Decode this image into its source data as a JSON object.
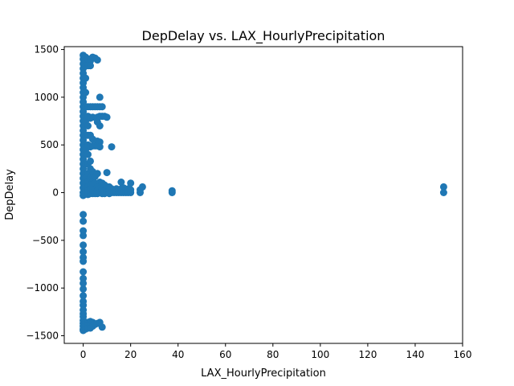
{
  "chart_data": {
    "type": "scatter",
    "title": "DepDelay vs. LAX_HourlyPrecipitation",
    "xlabel": "LAX_HourlyPrecipitation",
    "ylabel": "DepDelay",
    "xlim": [
      -8,
      160
    ],
    "ylim": [
      -1580,
      1530
    ],
    "xticks": [
      0,
      20,
      40,
      60,
      80,
      100,
      120,
      140,
      160
    ],
    "yticks": [
      -1500,
      -1000,
      -500,
      0,
      500,
      1000,
      1500
    ],
    "xtick_labels": [
      "0",
      "20",
      "40",
      "60",
      "80",
      "100",
      "120",
      "140",
      "160"
    ],
    "ytick_labels": [
      "−1500",
      "−1000",
      "−500",
      "0",
      "500",
      "1000",
      "1500"
    ],
    "grid": false,
    "marker_color": "#1f77b4",
    "series": [
      {
        "name": "DepDelay",
        "points": [
          [
            0,
            1440
          ],
          [
            0,
            1400
          ],
          [
            0,
            1350
          ],
          [
            0,
            1300
          ],
          [
            0,
            1250
          ],
          [
            0,
            1200
          ],
          [
            0,
            1150
          ],
          [
            0,
            1100
          ],
          [
            0,
            1050
          ],
          [
            0,
            1000
          ],
          [
            0,
            950
          ],
          [
            0,
            900
          ],
          [
            0,
            850
          ],
          [
            0,
            800
          ],
          [
            0,
            750
          ],
          [
            0,
            700
          ],
          [
            0,
            650
          ],
          [
            0,
            600
          ],
          [
            0,
            550
          ],
          [
            0,
            500
          ],
          [
            0,
            450
          ],
          [
            0,
            400
          ],
          [
            0,
            350
          ],
          [
            0,
            300
          ],
          [
            0,
            250
          ],
          [
            0,
            200
          ],
          [
            0,
            150
          ],
          [
            0,
            100
          ],
          [
            0,
            50
          ],
          [
            0,
            0
          ],
          [
            0,
            -30
          ],
          [
            0,
            -230
          ],
          [
            0,
            -300
          ],
          [
            0,
            -400
          ],
          [
            0,
            -450
          ],
          [
            0,
            -550
          ],
          [
            0,
            -620
          ],
          [
            0,
            -680
          ],
          [
            0,
            -720
          ],
          [
            0,
            -830
          ],
          [
            0,
            -900
          ],
          [
            0,
            -950
          ],
          [
            0,
            -1010
          ],
          [
            0,
            -1080
          ],
          [
            0,
            -1140
          ],
          [
            0,
            -1180
          ],
          [
            0,
            -1230
          ],
          [
            0,
            -1270
          ],
          [
            0,
            -1300
          ],
          [
            0,
            -1340
          ],
          [
            0,
            -1370
          ],
          [
            0,
            -1400
          ],
          [
            0,
            -1430
          ],
          [
            0,
            -1445
          ],
          [
            1,
            1420
          ],
          [
            1,
            1380
          ],
          [
            1,
            1330
          ],
          [
            1,
            1200
          ],
          [
            1,
            1050
          ],
          [
            1,
            900
          ],
          [
            1,
            750
          ],
          [
            1,
            600
          ],
          [
            1,
            450
          ],
          [
            1,
            300
          ],
          [
            1,
            150
          ],
          [
            1,
            60
          ],
          [
            1,
            20
          ],
          [
            1,
            -10
          ],
          [
            1,
            -1360
          ],
          [
            1,
            -1400
          ],
          [
            1,
            -1430
          ],
          [
            2,
            1400
          ],
          [
            2,
            1330
          ],
          [
            2,
            900
          ],
          [
            2,
            800
          ],
          [
            2,
            700
          ],
          [
            2,
            600
          ],
          [
            2,
            500
          ],
          [
            2,
            400
          ],
          [
            2,
            300
          ],
          [
            2,
            200
          ],
          [
            2,
            120
          ],
          [
            2,
            60
          ],
          [
            2,
            20
          ],
          [
            2,
            -20
          ],
          [
            2,
            -1360
          ],
          [
            2,
            -1390
          ],
          [
            2,
            -1420
          ],
          [
            3,
            1380
          ],
          [
            3,
            1330
          ],
          [
            3,
            900
          ],
          [
            3,
            780
          ],
          [
            3,
            600
          ],
          [
            3,
            480
          ],
          [
            3,
            330
          ],
          [
            3,
            250
          ],
          [
            3,
            150
          ],
          [
            3,
            80
          ],
          [
            3,
            30
          ],
          [
            3,
            -10
          ],
          [
            3,
            -1350
          ],
          [
            3,
            -1390
          ],
          [
            3,
            -1420
          ],
          [
            4,
            1420
          ],
          [
            4,
            900
          ],
          [
            4,
            790
          ],
          [
            4,
            560
          ],
          [
            4,
            490
          ],
          [
            4,
            220
          ],
          [
            4,
            150
          ],
          [
            4,
            70
          ],
          [
            4,
            20
          ],
          [
            4,
            -10
          ],
          [
            4,
            -1360
          ],
          [
            4,
            -1400
          ],
          [
            5,
            1410
          ],
          [
            5,
            900
          ],
          [
            5,
            490
          ],
          [
            5,
            170
          ],
          [
            5,
            100
          ],
          [
            5,
            30
          ],
          [
            5,
            -10
          ],
          [
            5,
            -1380
          ],
          [
            6,
            1390
          ],
          [
            6,
            900
          ],
          [
            6,
            790
          ],
          [
            6,
            740
          ],
          [
            6,
            540
          ],
          [
            6,
            490
          ],
          [
            6,
            200
          ],
          [
            6,
            60
          ],
          [
            6,
            20
          ],
          [
            6,
            -10
          ],
          [
            6,
            -1370
          ],
          [
            7,
            1000
          ],
          [
            7,
            900
          ],
          [
            7,
            800
          ],
          [
            7,
            700
          ],
          [
            7,
            530
          ],
          [
            7,
            480
          ],
          [
            7,
            110
          ],
          [
            7,
            40
          ],
          [
            7,
            0
          ],
          [
            7,
            -1360
          ],
          [
            8,
            900
          ],
          [
            8,
            800
          ],
          [
            8,
            100
          ],
          [
            8,
            30
          ],
          [
            8,
            -10
          ],
          [
            8,
            -1410
          ],
          [
            9,
            800
          ],
          [
            9,
            80
          ],
          [
            9,
            20
          ],
          [
            9,
            -10
          ],
          [
            10,
            790
          ],
          [
            10,
            210
          ],
          [
            10,
            60
          ],
          [
            10,
            10
          ],
          [
            11,
            60
          ],
          [
            11,
            20
          ],
          [
            11,
            -10
          ],
          [
            12,
            480
          ],
          [
            12,
            40
          ],
          [
            12,
            0
          ],
          [
            13,
            30
          ],
          [
            13,
            0
          ],
          [
            14,
            40
          ],
          [
            14,
            0
          ],
          [
            15,
            30
          ],
          [
            15,
            0
          ],
          [
            16,
            110
          ],
          [
            16,
            40
          ],
          [
            16,
            0
          ],
          [
            17,
            50
          ],
          [
            17,
            0
          ],
          [
            18,
            30
          ],
          [
            18,
            0
          ],
          [
            19,
            40
          ],
          [
            19,
            0
          ],
          [
            20,
            100
          ],
          [
            20,
            30
          ],
          [
            20,
            0
          ],
          [
            24,
            30
          ],
          [
            24,
            0
          ],
          [
            25,
            60
          ],
          [
            37.5,
            20
          ],
          [
            37.5,
            0
          ],
          [
            152,
            60
          ],
          [
            152,
            0
          ]
        ]
      }
    ]
  }
}
